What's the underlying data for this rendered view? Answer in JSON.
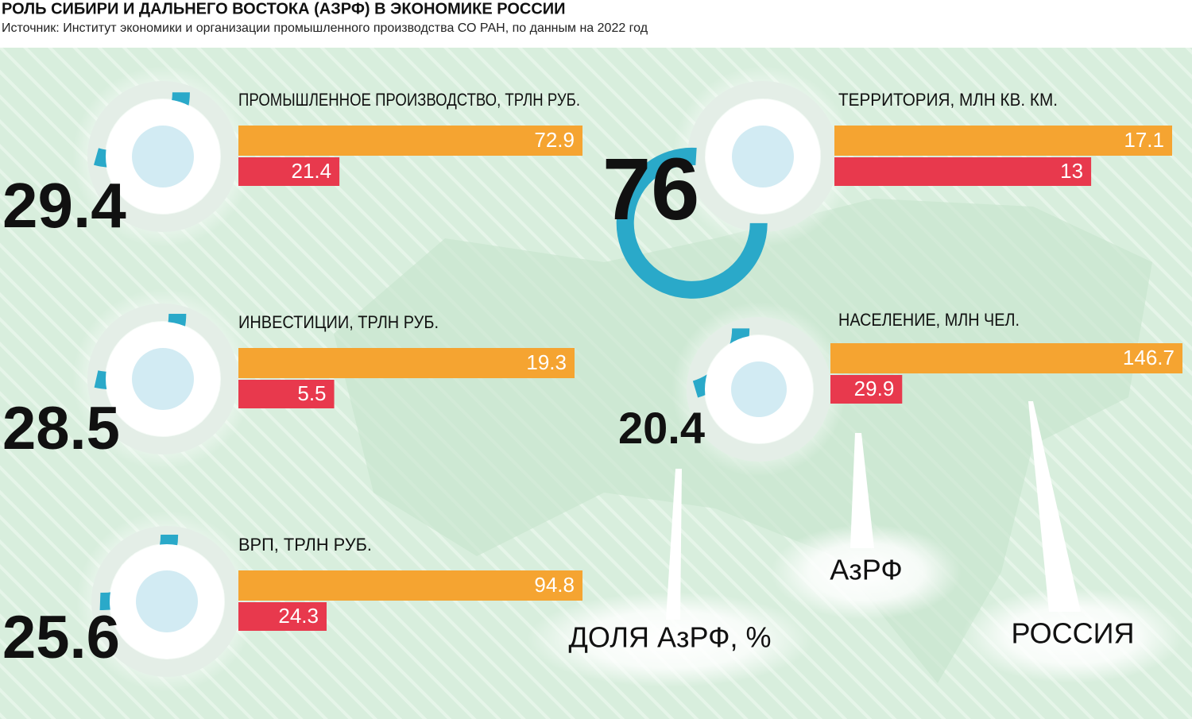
{
  "title": "РОЛЬ СИБИРИ И ДАЛЬНЕГО ВОСТОКА (АЗРФ) В ЭКОНОМИКЕ РОССИИ",
  "source": "Источник:  Институт экономики и организации промышленного производства СО РАН, по данным на 2022 год",
  "share_label": "ДОЛЯ АзРФ, %",
  "series": [
    {
      "name": "РОССИЯ",
      "color": "#f5a431"
    },
    {
      "name": "АзРФ",
      "color": "#e8394d"
    }
  ],
  "share_color": "#2aa9c9",
  "chart_data": [
    {
      "type": "bar",
      "title": "ПРОМЫШЛЕННОЕ ПРОИЗВОДСТВО, ТРЛН РУБ.",
      "values": [
        72.9,
        21.4
      ],
      "share": 29.4
    },
    {
      "type": "bar",
      "title": "ТЕРРИТОРИЯ, МЛН КВ. КМ.",
      "values": [
        17.1,
        13
      ],
      "share": 76
    },
    {
      "type": "bar",
      "title": "ИНВЕСТИЦИИ, ТРЛН РУБ.",
      "values": [
        19.3,
        5.5
      ],
      "share": 28.5
    },
    {
      "type": "bar",
      "title": "НАСЕЛЕНИЕ, МЛН ЧЕЛ.",
      "values": [
        146.7,
        29.9
      ],
      "share": 20.4
    },
    {
      "type": "bar",
      "title": "ВРП, ТРЛН РУБ.",
      "values": [
        94.8,
        24.3
      ],
      "share": 25.6
    }
  ]
}
